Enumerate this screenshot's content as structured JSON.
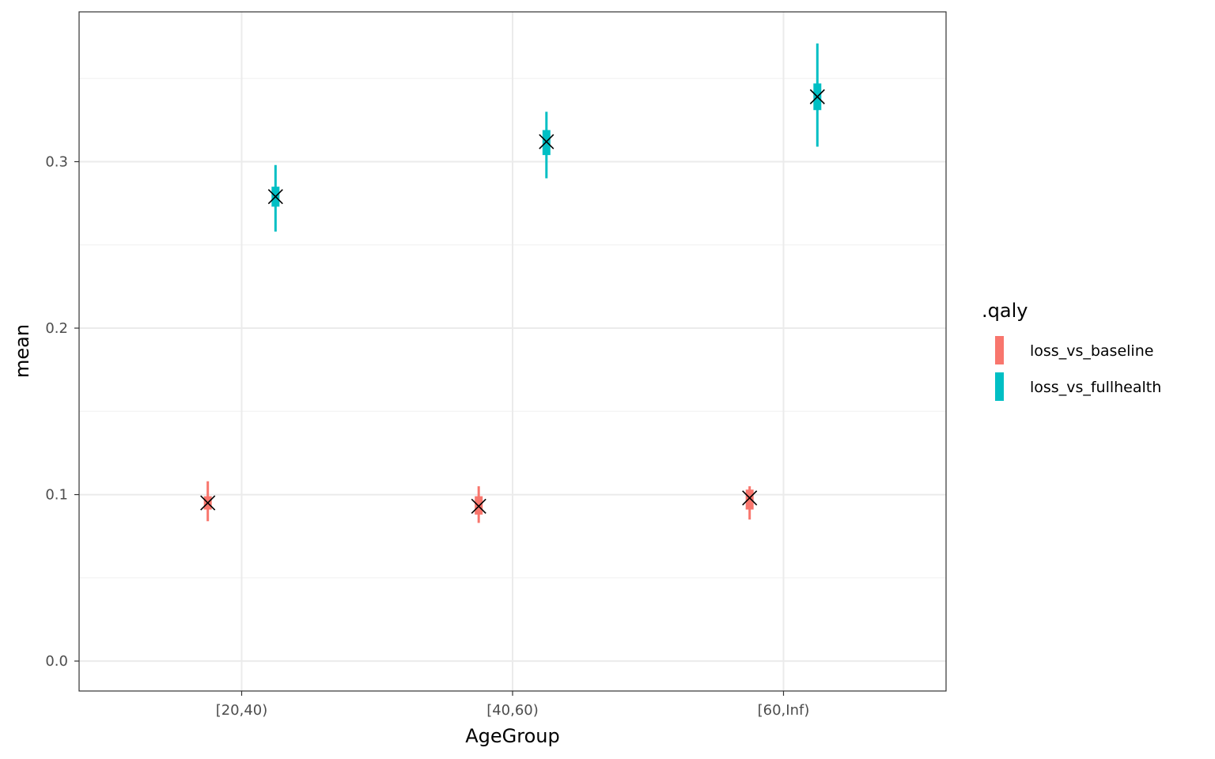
{
  "chart_data": {
    "type": "scatter",
    "title": "",
    "xlabel": "AgeGroup",
    "ylabel": "mean",
    "categories": [
      "[20,40)",
      "[40,60)",
      "[60,Inf)"
    ],
    "ylim": [
      -0.018,
      0.39
    ],
    "yticks": [
      0.0,
      0.1,
      0.2,
      0.3
    ],
    "ytick_labels": [
      "0.0",
      "0.1",
      "0.2",
      "0.3"
    ],
    "grid": true,
    "legend": {
      "title": ".qaly",
      "position": "right"
    },
    "point_marker": "x",
    "point_color": "#000000",
    "series": [
      {
        "name": "loss_vs_baseline",
        "color": "#F8766D",
        "mean": [
          0.095,
          0.093,
          0.098
        ],
        "inner_low": [
          0.091,
          0.088,
          0.091
        ],
        "inner_high": [
          0.099,
          0.099,
          0.103
        ],
        "outer_low": [
          0.084,
          0.083,
          0.085
        ],
        "outer_high": [
          0.108,
          0.105,
          0.105
        ]
      },
      {
        "name": "loss_vs_fullhealth",
        "color": "#00BFC4",
        "mean": [
          0.279,
          0.312,
          0.339
        ],
        "inner_low": [
          0.273,
          0.304,
          0.331
        ],
        "inner_high": [
          0.285,
          0.319,
          0.347
        ],
        "outer_low": [
          0.258,
          0.29,
          0.309
        ],
        "outer_high": [
          0.298,
          0.33,
          0.371
        ]
      }
    ]
  }
}
